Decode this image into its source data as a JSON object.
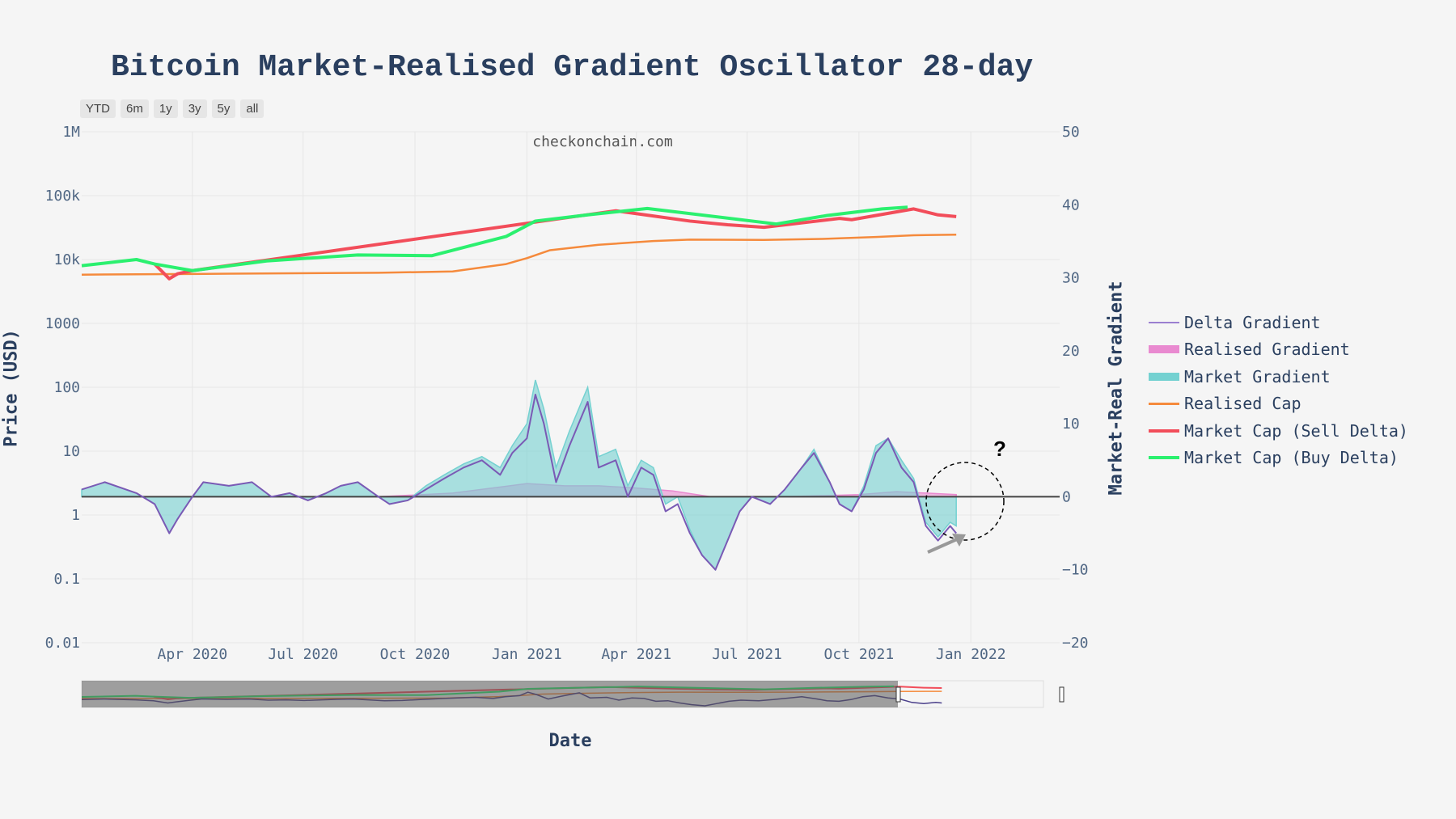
{
  "title": "Bitcoin Market-Realised Gradient Oscillator 28-day",
  "watermark": "checkonchain.com",
  "annotation_text": "?",
  "range_buttons": [
    "YTD",
    "6m",
    "1y",
    "3y",
    "5y",
    "all"
  ],
  "colors": {
    "background": "#f5f5f5",
    "delta_gradient": "#7a5ab5",
    "realised_gradient": "#e98ad0",
    "market_gradient": "#74d1d1",
    "realised_cap": "#f58a3c",
    "sell_delta": "#f24d5a",
    "buy_delta": "#2bf06f"
  },
  "chart_data": {
    "type": "line",
    "title": "Bitcoin Market-Realised Gradient Oscillator 28-day",
    "xlabel": "Date",
    "ylabel_left": "Price (USD)",
    "ylabel_right": "Market-Real Gradient",
    "x_range": [
      "2020-01-01",
      "2022-03-15"
    ],
    "x_ticks": [
      {
        "date": "2020-04-01",
        "label": "Apr 2020"
      },
      {
        "date": "2020-07-01",
        "label": "Jul 2020"
      },
      {
        "date": "2020-10-01",
        "label": "Oct 2020"
      },
      {
        "date": "2021-01-01",
        "label": "Jan 2021"
      },
      {
        "date": "2021-04-01",
        "label": "Apr 2021"
      },
      {
        "date": "2021-07-01",
        "label": "Jul 2021"
      },
      {
        "date": "2021-10-01",
        "label": "Oct 2021"
      },
      {
        "date": "2022-01-01",
        "label": "Jan 2022"
      }
    ],
    "y_left": {
      "scale": "log",
      "range": [
        0.01,
        1000000
      ],
      "ticks": [
        {
          "value": 0.01,
          "label": "0.01"
        },
        {
          "value": 0.1,
          "label": "0.1"
        },
        {
          "value": 1,
          "label": "1"
        },
        {
          "value": 10,
          "label": "10"
        },
        {
          "value": 100,
          "label": "100"
        },
        {
          "value": 1000,
          "label": "1000"
        },
        {
          "value": 10000,
          "label": "10k"
        },
        {
          "value": 100000,
          "label": "100k"
        },
        {
          "value": 1000000,
          "label": "1M"
        }
      ]
    },
    "y_right": {
      "scale": "linear",
      "range": [
        -20,
        50
      ],
      "ticks": [
        {
          "value": -20,
          "label": "−20"
        },
        {
          "value": -10,
          "label": "−10"
        },
        {
          "value": 0,
          "label": "0"
        },
        {
          "value": 10,
          "label": "10"
        },
        {
          "value": 20,
          "label": "20"
        },
        {
          "value": 30,
          "label": "30"
        },
        {
          "value": 40,
          "label": "40"
        },
        {
          "value": 50,
          "label": "50"
        }
      ]
    },
    "series": [
      {
        "name": "Delta Gradient",
        "axis": "right",
        "kind": "line",
        "color": "#7a5ab5",
        "x": [
          "2020-01-01",
          "2020-01-20",
          "2020-02-15",
          "2020-03-01",
          "2020-03-13",
          "2020-03-20",
          "2020-04-01",
          "2020-04-10",
          "2020-05-01",
          "2020-05-20",
          "2020-06-05",
          "2020-06-20",
          "2020-07-05",
          "2020-07-20",
          "2020-08-01",
          "2020-08-15",
          "2020-09-01",
          "2020-09-10",
          "2020-09-25",
          "2020-10-10",
          "2020-10-25",
          "2020-11-10",
          "2020-11-25",
          "2020-12-10",
          "2020-12-20",
          "2021-01-01",
          "2021-01-08",
          "2021-01-15",
          "2021-01-25",
          "2021-02-05",
          "2021-02-20",
          "2021-03-01",
          "2021-03-15",
          "2021-03-25",
          "2021-04-05",
          "2021-04-15",
          "2021-04-25",
          "2021-05-05",
          "2021-05-15",
          "2021-05-25",
          "2021-06-05",
          "2021-06-15",
          "2021-06-25",
          "2021-07-05",
          "2021-07-20",
          "2021-08-01",
          "2021-08-15",
          "2021-08-25",
          "2021-09-07",
          "2021-09-15",
          "2021-09-25",
          "2021-10-05",
          "2021-10-15",
          "2021-10-25",
          "2021-11-05",
          "2021-11-15",
          "2021-11-25",
          "2021-12-05",
          "2021-12-15",
          "2021-12-20"
        ],
        "y": [
          1,
          2,
          0.5,
          -1,
          -5,
          -3,
          0,
          2,
          1.5,
          2,
          0,
          0.5,
          -0.5,
          0.5,
          1.5,
          2,
          0,
          -1,
          -0.5,
          1,
          2.5,
          4,
          5,
          3,
          6,
          8,
          14,
          10,
          2,
          7,
          13,
          4,
          5,
          0,
          4,
          3,
          -2,
          -1,
          -5,
          -8,
          -10,
          -6,
          -2,
          0,
          -1,
          1,
          4,
          6,
          2,
          -1,
          -2,
          1,
          6,
          8,
          4,
          2,
          -4,
          -6,
          -4,
          -5
        ]
      },
      {
        "name": "Realised Gradient",
        "axis": "right",
        "kind": "area",
        "color": "#e98ad0",
        "x": [
          "2020-01-01",
          "2020-09-01",
          "2020-11-01",
          "2021-01-01",
          "2021-02-01",
          "2021-03-01",
          "2021-04-01",
          "2021-05-01",
          "2021-06-01",
          "2021-07-01",
          "2021-08-01",
          "2021-10-01",
          "2021-11-01",
          "2021-12-20"
        ],
        "y": [
          0,
          0,
          0.5,
          1.8,
          1.5,
          1.5,
          1.2,
          0.8,
          0,
          0,
          0,
          0.3,
          0.7,
          0.3
        ]
      },
      {
        "name": "Market Gradient",
        "axis": "right",
        "kind": "area",
        "color": "#74d1d1",
        "x": [
          "2020-01-01",
          "2020-01-20",
          "2020-02-15",
          "2020-03-01",
          "2020-03-13",
          "2020-03-20",
          "2020-04-01",
          "2020-04-10",
          "2020-05-01",
          "2020-05-20",
          "2020-06-05",
          "2020-06-20",
          "2020-07-05",
          "2020-07-20",
          "2020-08-01",
          "2020-08-15",
          "2020-09-01",
          "2020-09-10",
          "2020-09-25",
          "2020-10-10",
          "2020-10-25",
          "2020-11-10",
          "2020-11-25",
          "2020-12-10",
          "2020-12-20",
          "2021-01-01",
          "2021-01-08",
          "2021-01-15",
          "2021-01-25",
          "2021-02-05",
          "2021-02-20",
          "2021-03-01",
          "2021-03-15",
          "2021-03-25",
          "2021-04-05",
          "2021-04-15",
          "2021-04-25",
          "2021-05-05",
          "2021-05-15",
          "2021-05-25",
          "2021-06-05",
          "2021-06-15",
          "2021-06-25",
          "2021-07-05",
          "2021-07-20",
          "2021-08-01",
          "2021-08-15",
          "2021-08-25",
          "2021-09-07",
          "2021-09-15",
          "2021-09-25",
          "2021-10-05",
          "2021-10-15",
          "2021-10-25",
          "2021-11-05",
          "2021-11-15",
          "2021-11-25",
          "2021-12-05",
          "2021-12-15",
          "2021-12-20"
        ],
        "y": [
          1,
          2,
          0.5,
          -1,
          -5,
          -3,
          0,
          2,
          1.5,
          2,
          0,
          0.5,
          -0.5,
          0.5,
          1.5,
          2,
          0,
          -1,
          -0.5,
          1.5,
          3,
          4.5,
          5.5,
          4,
          7,
          10,
          16,
          12,
          4,
          9,
          15,
          5.5,
          6.5,
          1.5,
          5,
          4,
          -1,
          0,
          -4.5,
          -8,
          -10,
          -6,
          -2,
          0,
          -1,
          1,
          4,
          6.5,
          2,
          -1,
          -2,
          1.5,
          7,
          8,
          5,
          2.5,
          -3.5,
          -5.5,
          -3.5,
          -4
        ]
      },
      {
        "name": "Realised Cap",
        "axis": "left",
        "kind": "line",
        "color": "#f58a3c",
        "x": [
          "2020-01-01",
          "2020-05-01",
          "2020-09-01",
          "2020-11-01",
          "2020-12-15",
          "2021-01-01",
          "2021-01-20",
          "2021-03-01",
          "2021-04-15",
          "2021-05-15",
          "2021-07-15",
          "2021-09-01",
          "2021-10-15",
          "2021-11-15",
          "2021-12-20"
        ],
        "y": [
          5800,
          6000,
          6200,
          6500,
          8500,
          10500,
          14000,
          17000,
          19500,
          20500,
          20300,
          21000,
          22500,
          24000,
          24500
        ]
      },
      {
        "name": "Market Cap (Sell Delta)",
        "axis": "left",
        "kind": "line",
        "color": "#f24d5a",
        "x": [
          "2020-03-01",
          "2020-03-13",
          "2020-03-20",
          "2020-04-01",
          "2021-03-15",
          "2021-05-15",
          "2021-06-15",
          "2021-07-15",
          "2021-09-15",
          "2021-09-25",
          "2021-11-15",
          "2021-12-05",
          "2021-12-20"
        ],
        "y": [
          8500,
          5000,
          6000,
          6700,
          58000,
          40000,
          35000,
          32000,
          44000,
          42000,
          62000,
          50000,
          47000
        ]
      },
      {
        "name": "Market Cap (Buy Delta)",
        "axis": "left",
        "kind": "line",
        "color": "#2bf06f",
        "x": [
          "2020-01-01",
          "2020-02-15",
          "2020-03-01",
          "2020-04-01",
          "2020-06-01",
          "2020-08-15",
          "2020-10-15",
          "2020-12-15",
          "2021-01-08",
          "2021-02-20",
          "2021-04-10",
          "2021-07-25",
          "2021-09-05",
          "2021-10-20",
          "2021-11-10"
        ],
        "y": [
          8000,
          10000,
          8500,
          6700,
          9500,
          11800,
          11500,
          23000,
          40000,
          50000,
          63000,
          36000,
          49000,
          62000,
          66000
        ]
      }
    ]
  }
}
